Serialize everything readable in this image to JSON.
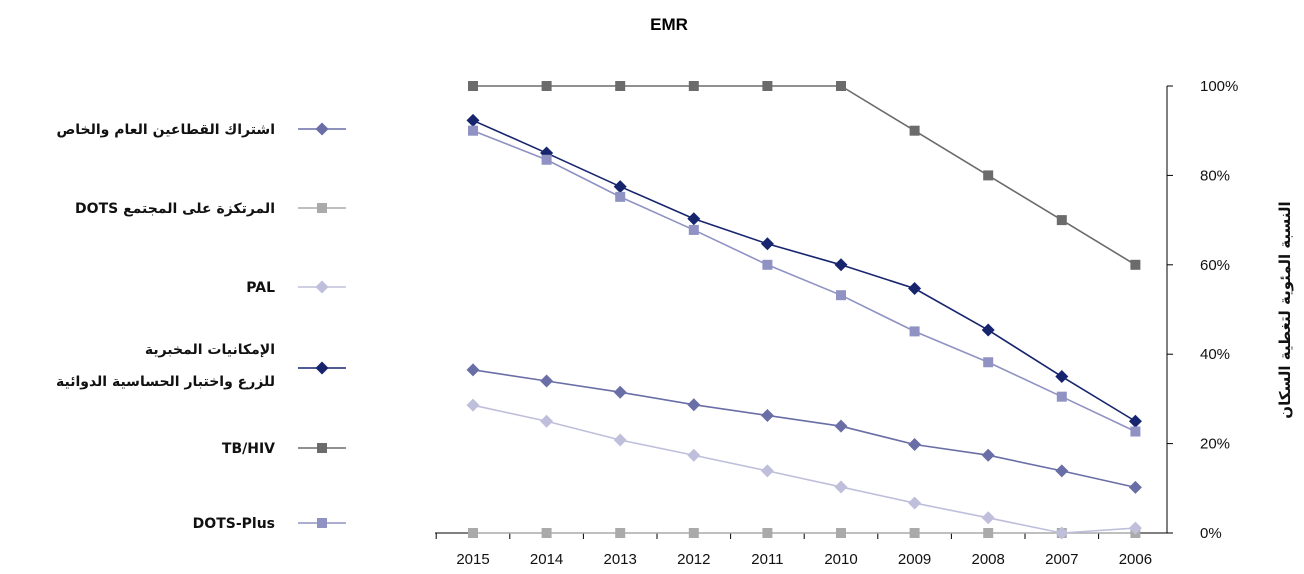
{
  "chart_data": {
    "type": "line",
    "title": "EMR",
    "xlabel": "",
    "ylabel": "النسبة المئوية لتغطية السكان",
    "categories": [
      "2015",
      "2014",
      "2013",
      "2012",
      "2011",
      "2010",
      "2009",
      "2008",
      "2007",
      "2006"
    ],
    "ylim": [
      0,
      100
    ],
    "y_ticks": [
      "0%",
      "20%",
      "40%",
      "60%",
      "80%",
      "100%"
    ],
    "grid": false,
    "legend_position": "left",
    "y_axis_side": "right",
    "series": [
      {
        "name": "اشتراك القطاعين العام والخاص",
        "marker": "diamond",
        "color": "#6a6ea6",
        "values": [
          36.5,
          34,
          31.5,
          28.7,
          26.3,
          23.9,
          19.8,
          17.4,
          13.9,
          10.2
        ]
      },
      {
        "name": "DOTS المرتكزة على المجتمع",
        "marker": "square",
        "color": "#aaaaaa",
        "values": [
          0,
          0,
          0,
          0,
          0,
          0,
          0,
          0,
          0,
          0
        ]
      },
      {
        "name": "PAL",
        "marker": "diamond",
        "color": "#bfbfdc",
        "values": [
          28.6,
          25,
          20.8,
          17.4,
          13.9,
          10.3,
          6.7,
          3.4,
          0,
          1.1
        ]
      },
      {
        "name": "الإمكانيات المخبرية للزرع واختبار الحساسية الدوائية",
        "marker": "diamond",
        "color": "#17256e",
        "values": [
          92.3,
          85,
          77.5,
          70.3,
          64.7,
          60,
          54.7,
          45.4,
          35,
          25
        ]
      },
      {
        "name": "TB/HIV",
        "marker": "square",
        "color": "#6b6b6b",
        "values": [
          100,
          100,
          100,
          100,
          100,
          100,
          90,
          80,
          70,
          60
        ]
      },
      {
        "name": "DOTS-Plus",
        "marker": "square",
        "color": "#8f92c2",
        "values": [
          90,
          83.5,
          75.2,
          67.8,
          60,
          53.2,
          45.1,
          38.2,
          30.5,
          22.7
        ]
      }
    ]
  }
}
